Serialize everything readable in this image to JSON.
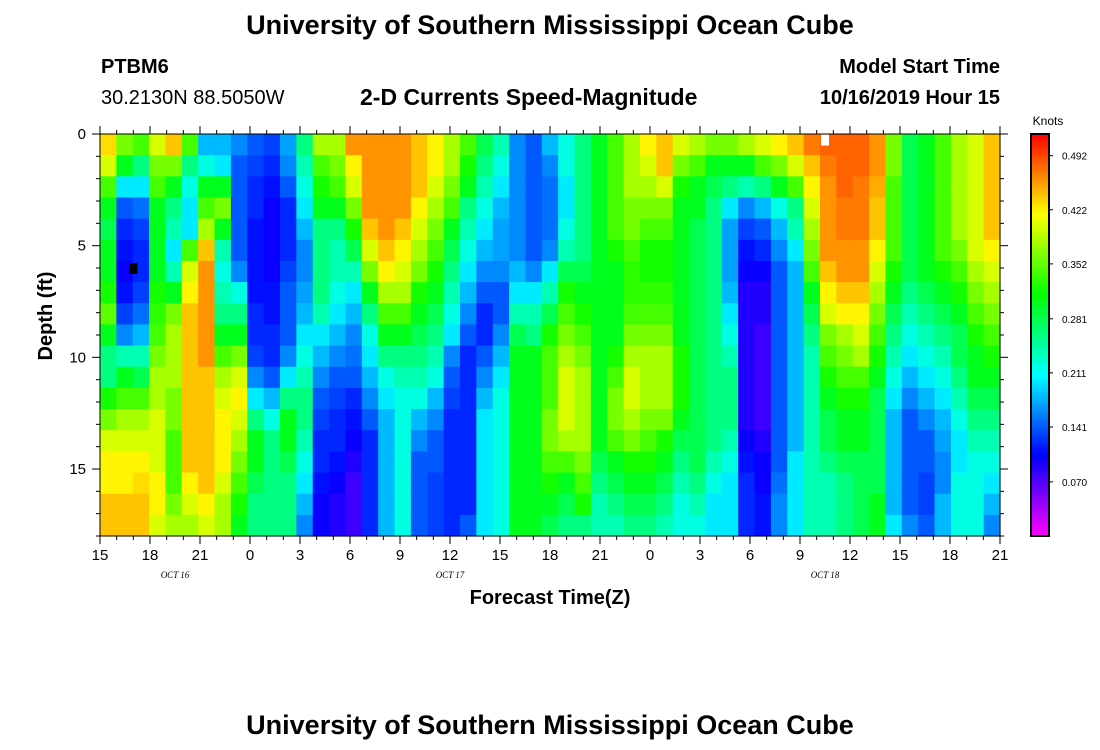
{
  "header": {
    "main_title": "University of Southern Mississippi Ocean Cube",
    "station_id": "PTBM6",
    "station_coords": "30.2130N 88.5050W",
    "plot_title": "2-D Currents Speed-Magnitude",
    "model_start_label": "Model Start Time",
    "model_start_value": "10/16/2019 Hour 15",
    "footer_title": "University of Southern Mississippi Ocean Cube"
  },
  "chart_data": {
    "type": "heatmap",
    "xlabel": "Forecast Time(Z)",
    "ylabel": "Depth (ft)",
    "x_tick_labels": [
      "15",
      "18",
      "21",
      "0",
      "3",
      "6",
      "9",
      "12",
      "15",
      "18",
      "21",
      "0",
      "3",
      "6",
      "9",
      "12",
      "15",
      "18",
      "21"
    ],
    "x_hours_from_start": [
      0,
      3,
      6,
      9,
      12,
      15,
      18,
      21,
      24,
      27,
      30,
      33,
      36,
      39,
      42,
      45,
      48,
      51,
      54
    ],
    "date_labels": [
      {
        "text": "OCT 16",
        "hours_from_start": 4.5
      },
      {
        "text": "OCT 17",
        "hours_from_start": 21
      },
      {
        "text": "OCT 18",
        "hours_from_start": 43.5
      }
    ],
    "xlim_hours": [
      0,
      54
    ],
    "y_ticks": [
      0,
      5,
      10,
      15
    ],
    "ylim": [
      0,
      18
    ],
    "y_inverted": true,
    "colorbar": {
      "label": "Knots",
      "tick_labels": [
        "0.492",
        "0.422",
        "0.352",
        "0.281",
        "0.211",
        "0.141",
        "0.070"
      ],
      "tick_values": [
        0.492,
        0.422,
        0.352,
        0.281,
        0.211,
        0.141,
        0.07
      ],
      "range": [
        0.0,
        0.52
      ],
      "colormap": "rainbow-magenta-to-red"
    },
    "columns_hours": [
      0,
      1,
      2,
      3,
      4,
      5,
      6,
      7,
      8,
      9,
      10,
      11,
      12,
      13,
      14,
      15,
      16,
      17,
      18,
      19,
      20,
      21,
      22,
      23,
      24,
      25,
      26,
      27,
      28,
      29,
      30,
      31,
      32,
      33,
      34,
      35,
      36,
      37,
      38,
      39,
      40,
      41,
      42,
      43,
      44,
      45,
      46,
      47,
      48,
      49,
      50,
      51,
      52,
      53,
      54
    ],
    "depth_rows_ft": [
      0,
      1,
      2,
      3,
      4,
      5,
      6,
      7,
      8,
      9,
      10,
      11,
      12,
      13,
      14,
      15,
      16,
      17,
      18
    ],
    "speed_columns_knots": [
      [
        0.43,
        0.4,
        0.34,
        0.3,
        0.28,
        0.3,
        0.3,
        0.32,
        0.35,
        0.3,
        0.26,
        0.26,
        0.32,
        0.36,
        0.4,
        0.42,
        0.42,
        0.44,
        0.44
      ],
      [
        0.36,
        0.3,
        0.2,
        0.14,
        0.12,
        0.11,
        0.1,
        0.11,
        0.13,
        0.16,
        0.24,
        0.3,
        0.34,
        0.38,
        0.4,
        0.42,
        0.42,
        0.44,
        0.44
      ],
      [
        0.34,
        0.26,
        0.2,
        0.15,
        0.13,
        0.12,
        0.12,
        0.13,
        0.15,
        0.18,
        0.24,
        0.28,
        0.34,
        0.38,
        0.4,
        0.42,
        0.43,
        0.44,
        0.44
      ],
      [
        0.4,
        0.36,
        0.34,
        0.3,
        0.3,
        0.3,
        0.3,
        0.32,
        0.33,
        0.34,
        0.36,
        0.38,
        0.38,
        0.4,
        0.4,
        0.4,
        0.42,
        0.42,
        0.4
      ],
      [
        0.44,
        0.36,
        0.3,
        0.26,
        0.24,
        0.2,
        0.24,
        0.3,
        0.36,
        0.38,
        0.38,
        0.38,
        0.36,
        0.36,
        0.34,
        0.34,
        0.34,
        0.36,
        0.38
      ],
      [
        0.34,
        0.26,
        0.22,
        0.2,
        0.2,
        0.34,
        0.4,
        0.42,
        0.44,
        0.44,
        0.44,
        0.44,
        0.44,
        0.44,
        0.44,
        0.44,
        0.42,
        0.4,
        0.38
      ],
      [
        0.18,
        0.22,
        0.3,
        0.34,
        0.38,
        0.44,
        0.46,
        0.46,
        0.46,
        0.46,
        0.46,
        0.44,
        0.44,
        0.44,
        0.44,
        0.44,
        0.44,
        0.42,
        0.4
      ],
      [
        0.18,
        0.2,
        0.3,
        0.36,
        0.3,
        0.24,
        0.22,
        0.24,
        0.26,
        0.3,
        0.34,
        0.38,
        0.4,
        0.42,
        0.42,
        0.42,
        0.4,
        0.38,
        0.38
      ],
      [
        0.16,
        0.14,
        0.14,
        0.14,
        0.14,
        0.14,
        0.16,
        0.22,
        0.26,
        0.3,
        0.36,
        0.4,
        0.42,
        0.4,
        0.38,
        0.36,
        0.34,
        0.32,
        0.3
      ],
      [
        0.14,
        0.13,
        0.12,
        0.12,
        0.11,
        0.11,
        0.11,
        0.11,
        0.12,
        0.12,
        0.13,
        0.16,
        0.2,
        0.26,
        0.3,
        0.3,
        0.28,
        0.26,
        0.26
      ],
      [
        0.13,
        0.12,
        0.11,
        0.1,
        0.1,
        0.1,
        0.1,
        0.11,
        0.11,
        0.12,
        0.12,
        0.14,
        0.18,
        0.22,
        0.26,
        0.26,
        0.26,
        0.26,
        0.26
      ],
      [
        0.17,
        0.16,
        0.14,
        0.12,
        0.12,
        0.12,
        0.13,
        0.14,
        0.14,
        0.14,
        0.16,
        0.2,
        0.26,
        0.3,
        0.3,
        0.28,
        0.26,
        0.26,
        0.26
      ],
      [
        0.26,
        0.24,
        0.22,
        0.2,
        0.18,
        0.16,
        0.16,
        0.17,
        0.18,
        0.2,
        0.22,
        0.24,
        0.26,
        0.26,
        0.24,
        0.22,
        0.2,
        0.18,
        0.16
      ],
      [
        0.38,
        0.34,
        0.32,
        0.3,
        0.26,
        0.26,
        0.26,
        0.26,
        0.24,
        0.2,
        0.18,
        0.16,
        0.14,
        0.13,
        0.12,
        0.12,
        0.11,
        0.1,
        0.1
      ],
      [
        0.38,
        0.36,
        0.34,
        0.3,
        0.26,
        0.24,
        0.24,
        0.22,
        0.2,
        0.18,
        0.16,
        0.14,
        0.13,
        0.12,
        0.12,
        0.11,
        0.1,
        0.09,
        0.09
      ],
      [
        0.46,
        0.42,
        0.4,
        0.36,
        0.32,
        0.28,
        0.24,
        0.2,
        0.18,
        0.16,
        0.15,
        0.14,
        0.12,
        0.11,
        0.1,
        0.09,
        0.08,
        0.08,
        0.08
      ],
      [
        0.46,
        0.46,
        0.46,
        0.46,
        0.44,
        0.4,
        0.36,
        0.3,
        0.26,
        0.22,
        0.2,
        0.18,
        0.16,
        0.14,
        0.12,
        0.12,
        0.12,
        0.12,
        0.12
      ],
      [
        0.46,
        0.46,
        0.46,
        0.46,
        0.46,
        0.44,
        0.42,
        0.38,
        0.34,
        0.3,
        0.26,
        0.22,
        0.2,
        0.18,
        0.18,
        0.18,
        0.18,
        0.18,
        0.18
      ],
      [
        0.46,
        0.46,
        0.46,
        0.46,
        0.44,
        0.42,
        0.4,
        0.38,
        0.34,
        0.3,
        0.26,
        0.24,
        0.22,
        0.22,
        0.22,
        0.22,
        0.22,
        0.22,
        0.22
      ],
      [
        0.44,
        0.44,
        0.44,
        0.42,
        0.4,
        0.38,
        0.36,
        0.32,
        0.3,
        0.28,
        0.26,
        0.24,
        0.22,
        0.18,
        0.16,
        0.14,
        0.14,
        0.14,
        0.14
      ],
      [
        0.42,
        0.42,
        0.4,
        0.38,
        0.36,
        0.34,
        0.32,
        0.3,
        0.28,
        0.26,
        0.24,
        0.22,
        0.18,
        0.16,
        0.14,
        0.14,
        0.13,
        0.13,
        0.13
      ],
      [
        0.38,
        0.38,
        0.36,
        0.34,
        0.3,
        0.28,
        0.26,
        0.24,
        0.22,
        0.2,
        0.16,
        0.14,
        0.13,
        0.12,
        0.12,
        0.12,
        0.12,
        0.12,
        0.12
      ],
      [
        0.34,
        0.32,
        0.3,
        0.26,
        0.24,
        0.22,
        0.2,
        0.18,
        0.16,
        0.14,
        0.12,
        0.12,
        0.12,
        0.12,
        0.12,
        0.12,
        0.12,
        0.12,
        0.14
      ],
      [
        0.28,
        0.26,
        0.24,
        0.22,
        0.2,
        0.18,
        0.16,
        0.14,
        0.12,
        0.12,
        0.14,
        0.16,
        0.18,
        0.2,
        0.2,
        0.2,
        0.2,
        0.2,
        0.2
      ],
      [
        0.24,
        0.22,
        0.2,
        0.18,
        0.17,
        0.17,
        0.16,
        0.14,
        0.14,
        0.16,
        0.18,
        0.2,
        0.22,
        0.22,
        0.22,
        0.22,
        0.22,
        0.22,
        0.22
      ],
      [
        0.16,
        0.16,
        0.16,
        0.16,
        0.16,
        0.16,
        0.18,
        0.2,
        0.24,
        0.28,
        0.3,
        0.3,
        0.3,
        0.3,
        0.3,
        0.3,
        0.3,
        0.3,
        0.3
      ],
      [
        0.14,
        0.14,
        0.14,
        0.14,
        0.14,
        0.14,
        0.16,
        0.2,
        0.24,
        0.26,
        0.3,
        0.3,
        0.3,
        0.3,
        0.3,
        0.3,
        0.3,
        0.3,
        0.3
      ],
      [
        0.18,
        0.16,
        0.15,
        0.15,
        0.15,
        0.16,
        0.2,
        0.24,
        0.28,
        0.32,
        0.34,
        0.34,
        0.34,
        0.36,
        0.36,
        0.34,
        0.32,
        0.3,
        0.28
      ],
      [
        0.22,
        0.22,
        0.2,
        0.2,
        0.22,
        0.24,
        0.28,
        0.32,
        0.34,
        0.36,
        0.38,
        0.4,
        0.4,
        0.4,
        0.38,
        0.34,
        0.3,
        0.28,
        0.26
      ],
      [
        0.26,
        0.26,
        0.26,
        0.26,
        0.26,
        0.26,
        0.28,
        0.3,
        0.32,
        0.34,
        0.36,
        0.38,
        0.38,
        0.38,
        0.38,
        0.36,
        0.34,
        0.32,
        0.26
      ],
      [
        0.3,
        0.3,
        0.3,
        0.3,
        0.3,
        0.3,
        0.3,
        0.3,
        0.3,
        0.3,
        0.3,
        0.3,
        0.3,
        0.3,
        0.3,
        0.28,
        0.26,
        0.24,
        0.24
      ],
      [
        0.34,
        0.34,
        0.34,
        0.34,
        0.34,
        0.32,
        0.3,
        0.3,
        0.3,
        0.3,
        0.32,
        0.34,
        0.36,
        0.36,
        0.34,
        0.3,
        0.28,
        0.26,
        0.24
      ],
      [
        0.38,
        0.38,
        0.38,
        0.36,
        0.36,
        0.34,
        0.33,
        0.33,
        0.34,
        0.36,
        0.38,
        0.4,
        0.4,
        0.38,
        0.36,
        0.32,
        0.3,
        0.28,
        0.26
      ],
      [
        0.42,
        0.4,
        0.38,
        0.36,
        0.34,
        0.32,
        0.32,
        0.33,
        0.34,
        0.36,
        0.38,
        0.38,
        0.38,
        0.36,
        0.34,
        0.32,
        0.3,
        0.28,
        0.26
      ],
      [
        0.44,
        0.44,
        0.4,
        0.36,
        0.34,
        0.32,
        0.32,
        0.33,
        0.34,
        0.36,
        0.38,
        0.38,
        0.38,
        0.36,
        0.32,
        0.3,
        0.28,
        0.26,
        0.24
      ],
      [
        0.4,
        0.36,
        0.32,
        0.3,
        0.3,
        0.3,
        0.3,
        0.3,
        0.3,
        0.3,
        0.32,
        0.32,
        0.32,
        0.3,
        0.28,
        0.26,
        0.24,
        0.22,
        0.22
      ],
      [
        0.38,
        0.34,
        0.3,
        0.3,
        0.28,
        0.28,
        0.28,
        0.28,
        0.28,
        0.28,
        0.28,
        0.28,
        0.28,
        0.28,
        0.28,
        0.28,
        0.26,
        0.24,
        0.22
      ],
      [
        0.36,
        0.3,
        0.28,
        0.26,
        0.26,
        0.26,
        0.26,
        0.26,
        0.26,
        0.26,
        0.26,
        0.26,
        0.26,
        0.26,
        0.26,
        0.24,
        0.22,
        0.2,
        0.2
      ],
      [
        0.36,
        0.3,
        0.26,
        0.2,
        0.17,
        0.17,
        0.17,
        0.18,
        0.2,
        0.22,
        0.24,
        0.26,
        0.26,
        0.26,
        0.24,
        0.22,
        0.2,
        0.2,
        0.2
      ],
      [
        0.38,
        0.3,
        0.24,
        0.16,
        0.13,
        0.11,
        0.1,
        0.09,
        0.09,
        0.09,
        0.09,
        0.09,
        0.09,
        0.09,
        0.1,
        0.11,
        0.12,
        0.12,
        0.12
      ],
      [
        0.4,
        0.34,
        0.26,
        0.18,
        0.14,
        0.12,
        0.1,
        0.09,
        0.09,
        0.08,
        0.08,
        0.08,
        0.08,
        0.08,
        0.09,
        0.1,
        0.1,
        0.11,
        0.11
      ],
      [
        0.42,
        0.36,
        0.3,
        0.22,
        0.18,
        0.16,
        0.14,
        0.14,
        0.14,
        0.14,
        0.14,
        0.14,
        0.14,
        0.14,
        0.14,
        0.14,
        0.15,
        0.16,
        0.16
      ],
      [
        0.44,
        0.4,
        0.34,
        0.26,
        0.24,
        0.2,
        0.18,
        0.18,
        0.18,
        0.18,
        0.18,
        0.18,
        0.18,
        0.18,
        0.18,
        0.2,
        0.2,
        0.2,
        0.2
      ],
      [
        0.47,
        0.44,
        0.42,
        0.4,
        0.38,
        0.36,
        0.34,
        0.3,
        0.28,
        0.26,
        0.24,
        0.24,
        0.24,
        0.24,
        0.24,
        0.24,
        0.24,
        0.24,
        0.24
      ],
      [
        0.48,
        0.47,
        0.46,
        0.46,
        0.46,
        0.46,
        0.44,
        0.42,
        0.4,
        0.36,
        0.34,
        0.32,
        0.3,
        0.28,
        0.28,
        0.26,
        0.24,
        0.24,
        0.24
      ],
      [
        0.48,
        0.48,
        0.48,
        0.47,
        0.47,
        0.46,
        0.46,
        0.44,
        0.42,
        0.38,
        0.36,
        0.34,
        0.32,
        0.3,
        0.3,
        0.28,
        0.26,
        0.26,
        0.26
      ],
      [
        0.48,
        0.48,
        0.47,
        0.47,
        0.47,
        0.46,
        0.46,
        0.44,
        0.42,
        0.4,
        0.38,
        0.34,
        0.32,
        0.3,
        0.3,
        0.28,
        0.28,
        0.28,
        0.28
      ],
      [
        0.46,
        0.46,
        0.45,
        0.44,
        0.44,
        0.42,
        0.4,
        0.38,
        0.36,
        0.34,
        0.32,
        0.3,
        0.28,
        0.28,
        0.28,
        0.28,
        0.28,
        0.3,
        0.3
      ],
      [
        0.36,
        0.36,
        0.34,
        0.34,
        0.34,
        0.34,
        0.32,
        0.3,
        0.28,
        0.26,
        0.24,
        0.22,
        0.2,
        0.18,
        0.18,
        0.18,
        0.18,
        0.18,
        0.2
      ],
      [
        0.28,
        0.28,
        0.28,
        0.28,
        0.28,
        0.28,
        0.28,
        0.26,
        0.24,
        0.22,
        0.2,
        0.18,
        0.16,
        0.14,
        0.14,
        0.14,
        0.14,
        0.14,
        0.16
      ],
      [
        0.3,
        0.3,
        0.3,
        0.3,
        0.3,
        0.3,
        0.3,
        0.28,
        0.26,
        0.24,
        0.22,
        0.2,
        0.18,
        0.16,
        0.14,
        0.14,
        0.13,
        0.13,
        0.14
      ],
      [
        0.34,
        0.34,
        0.34,
        0.34,
        0.34,
        0.34,
        0.32,
        0.3,
        0.28,
        0.26,
        0.24,
        0.22,
        0.2,
        0.18,
        0.17,
        0.16,
        0.16,
        0.18,
        0.18
      ],
      [
        0.38,
        0.38,
        0.38,
        0.38,
        0.38,
        0.36,
        0.34,
        0.32,
        0.3,
        0.28,
        0.28,
        0.26,
        0.24,
        0.22,
        0.2,
        0.2,
        0.22,
        0.22,
        0.22
      ],
      [
        0.4,
        0.4,
        0.4,
        0.4,
        0.4,
        0.4,
        0.38,
        0.36,
        0.34,
        0.32,
        0.3,
        0.3,
        0.28,
        0.26,
        0.24,
        0.22,
        0.22,
        0.22,
        0.22
      ],
      [
        0.44,
        0.44,
        0.44,
        0.44,
        0.44,
        0.42,
        0.4,
        0.38,
        0.36,
        0.34,
        0.32,
        0.3,
        0.28,
        0.26,
        0.24,
        0.22,
        0.2,
        0.18,
        0.16
      ]
    ],
    "markers": [
      {
        "hours_from_start": 43.5,
        "depth_ft": 0.25,
        "color": "#ffffff"
      },
      {
        "hours_from_start": 2,
        "depth_ft": 6,
        "color": "#000000"
      }
    ]
  }
}
